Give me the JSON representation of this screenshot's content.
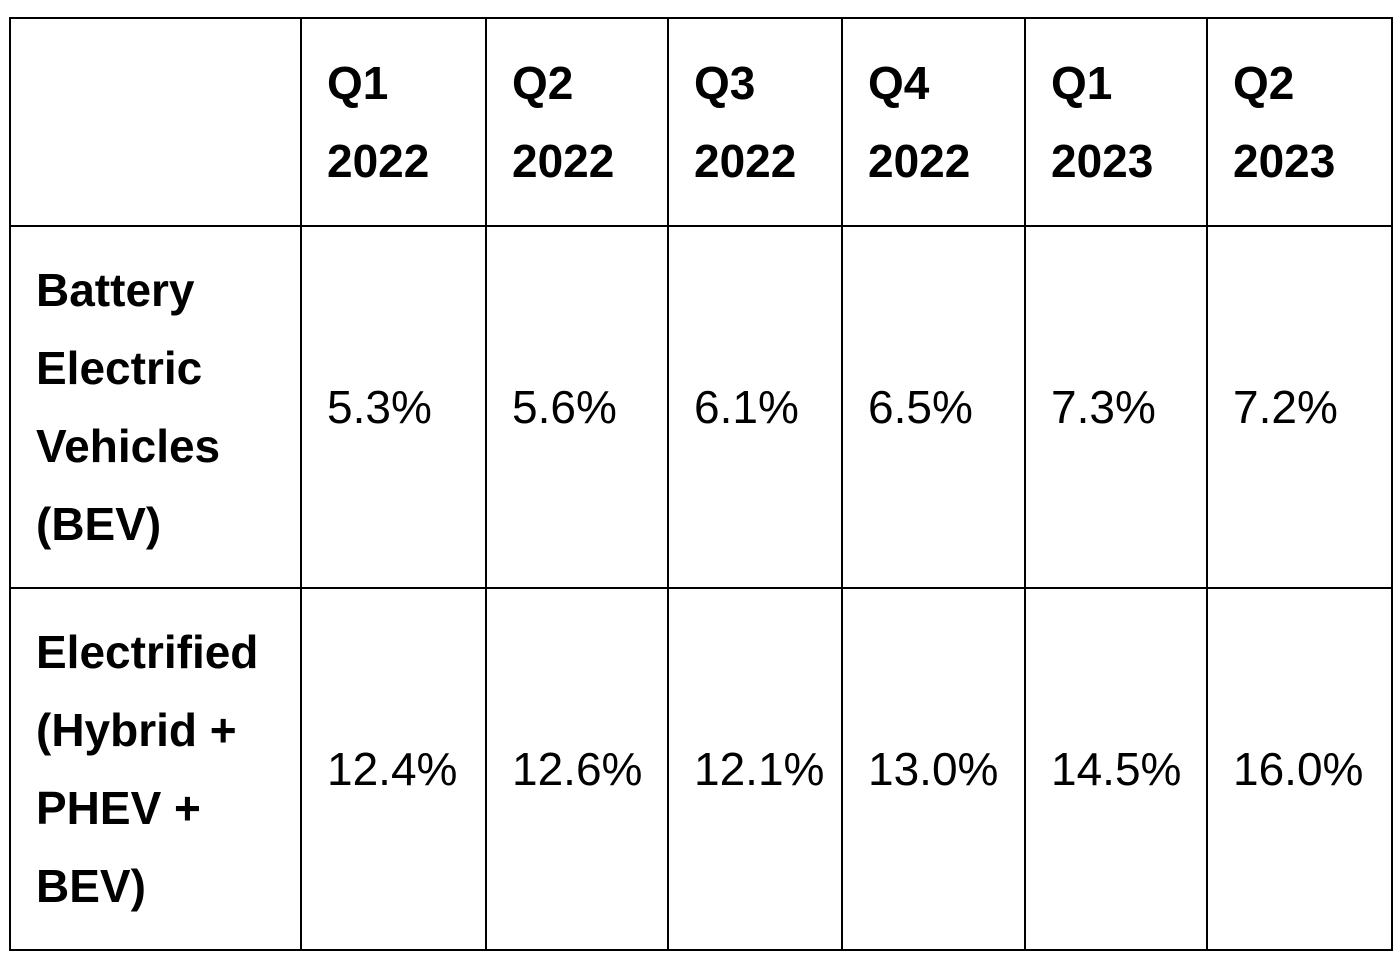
{
  "table": {
    "corner": "",
    "columns": [
      {
        "line1": "Q1",
        "line2": "2022"
      },
      {
        "line1": "Q2",
        "line2": "2022"
      },
      {
        "line1": "Q3",
        "line2": "2022"
      },
      {
        "line1": "Q4",
        "line2": "2022"
      },
      {
        "line1": "Q1",
        "line2": "2023"
      },
      {
        "line1": "Q2",
        "line2": "2023"
      }
    ],
    "rows": [
      {
        "label_lines": [
          "Battery",
          "Electric",
          "Vehicles",
          "(BEV)"
        ],
        "values": [
          "5.3%",
          "5.6%",
          "6.1%",
          "6.5%",
          "7.3%",
          "7.2%"
        ]
      },
      {
        "label_lines": [
          "Electrified",
          "(Hybrid +",
          "PHEV +",
          "BEV)"
        ],
        "values": [
          "12.4%",
          "12.6%",
          "12.1%",
          "13.0%",
          "14.5%",
          "16.0%"
        ]
      }
    ]
  }
}
